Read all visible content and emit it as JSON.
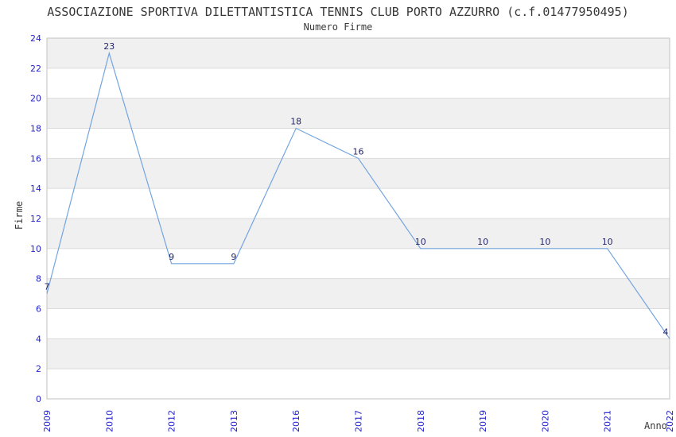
{
  "chart_data": {
    "type": "line",
    "title": "ASSOCIAZIONE SPORTIVA DILETTANTISTICA TENNIS CLUB PORTO AZZURRO (c.f.01477950495)",
    "subtitle": "Numero Firme",
    "xlabel": "Anno",
    "ylabel": "Firme",
    "x": [
      "2009",
      "2010",
      "2012",
      "2013",
      "2016",
      "2017",
      "2018",
      "2019",
      "2020",
      "2021",
      "2022"
    ],
    "values": [
      7,
      23,
      9,
      9,
      18,
      16,
      10,
      10,
      10,
      10,
      4
    ],
    "ylim": [
      0,
      24
    ],
    "ytick_step": 2,
    "grid": true,
    "legend": "none",
    "band_fill": "alternating",
    "point_labels_visible": true,
    "colors": {
      "line": "#74A4E0",
      "tick_label": "#2323CC",
      "point_label": "#26266B",
      "band_gray": "#F0F0F0",
      "band_white": "#FFFFFF",
      "grid_line": "#DBDBDB",
      "plot_border": "#C2C2C2",
      "text": "#383838"
    }
  }
}
